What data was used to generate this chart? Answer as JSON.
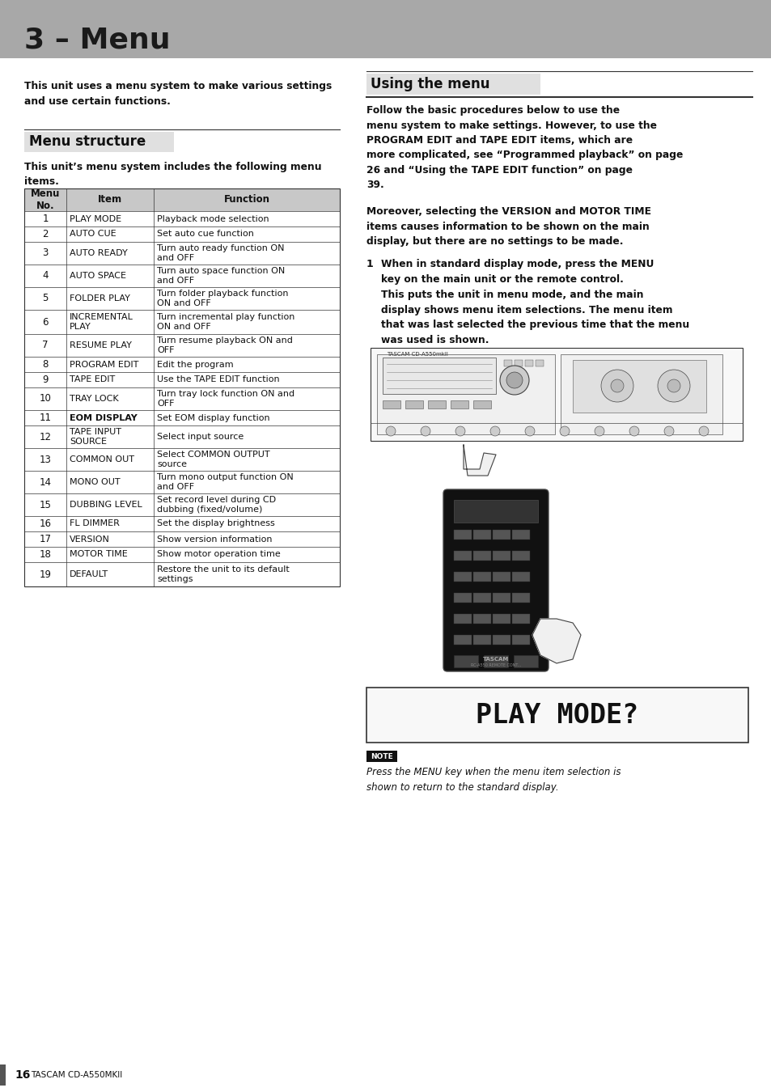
{
  "page_bg": "#ffffff",
  "header_bg": "#a8a8a8",
  "header_text": "3 – Menu",
  "header_text_color": "#1a1a1a",
  "intro_text": "This unit uses a menu system to make various settings\nand use certain functions.",
  "menu_structure_title": "Menu structure",
  "menu_structure_subtitle": "This unit’s menu system includes the following menu\nitems.",
  "table_headers": [
    "Menu\nNo.",
    "Item",
    "Function"
  ],
  "table_rows": [
    [
      "1",
      "PLAY MODE",
      "Playback mode selection"
    ],
    [
      "2",
      "AUTO CUE",
      "Set auto cue function"
    ],
    [
      "3",
      "AUTO READY",
      "Turn auto ready function ON\nand OFF"
    ],
    [
      "4",
      "AUTO SPACE",
      "Turn auto space function ON\nand OFF"
    ],
    [
      "5",
      "FOLDER PLAY",
      "Turn folder playback function\nON and OFF"
    ],
    [
      "6",
      "INCREMENTAL\nPLAY",
      "Turn incremental play function\nON and OFF"
    ],
    [
      "7",
      "RESUME PLAY",
      "Turn resume playback ON and\nOFF"
    ],
    [
      "8",
      "PROGRAM EDIT",
      "Edit the program"
    ],
    [
      "9",
      "TAPE EDIT",
      "Use the TAPE EDIT function"
    ],
    [
      "10",
      "TRAY LOCK",
      "Turn tray lock function ON and\nOFF"
    ],
    [
      "11",
      "EOM DISPLAY",
      "Set EOM display function"
    ],
    [
      "12",
      "TAPE INPUT\nSOURCE",
      "Select input source"
    ],
    [
      "13",
      "COMMON OUT",
      "Select COMMON OUTPUT\nsource"
    ],
    [
      "14",
      "MONO OUT",
      "Turn mono output function ON\nand OFF"
    ],
    [
      "15",
      "DUBBING LEVEL",
      "Set record level during CD\ndubbing (fixed/volume)"
    ],
    [
      "16",
      "FL DIMMER",
      "Set the display brightness"
    ],
    [
      "17",
      "VERSION",
      "Show version information"
    ],
    [
      "18",
      "MOTOR TIME",
      "Show motor operation time"
    ],
    [
      "19",
      "DEFAULT",
      "Restore the unit to its default\nsettings"
    ]
  ],
  "using_menu_title": "Using the menu",
  "using_menu_body": "Follow the basic procedures below to use the\nmenu system to make settings. However, to use the\nPROGRAM EDIT and TAPE EDIT items, which are\nmore complicated, see “Programmed playback” on page\n26 and “Using the TAPE EDIT function” on page\n39.",
  "using_menu_body2": "Moreover, selecting the VERSION and MOTOR TIME\nitems causes information to be shown on the main\ndisplay, but there are no settings to be made.",
  "step1_num": "1",
  "step1_text": "When in standard display mode, press the MENU\nkey on the main unit or the remote control.",
  "step1_sub": "This puts the unit in menu mode, and the main\ndisplay shows menu item selections. The menu item\nthat was last selected the previous time that the menu\nwas used is shown.",
  "play_mode_text": "PLAY MODE?",
  "note_label": "NOTE",
  "note_text": "Press the MENU key when the menu item selection is\nshown to return to the standard display.",
  "footer_page": "16",
  "footer_brand": "TASCAM CD-A550MKII",
  "footer_bar_color": "#555555"
}
